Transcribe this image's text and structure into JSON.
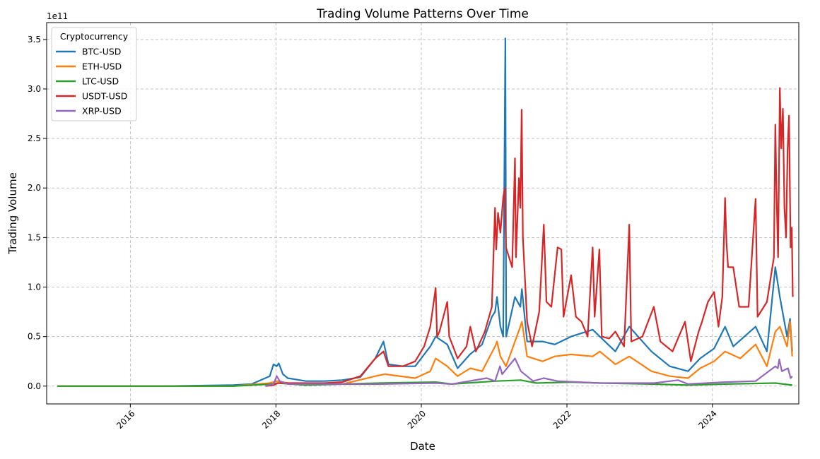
{
  "chart_data": {
    "type": "line",
    "title": "Trading Volume Patterns Over Time",
    "xlabel": "Date",
    "ylabel": "Trading Volume",
    "y_offset_label": "1e11",
    "xlim": [
      "2014-11-07",
      "2025-03-10"
    ],
    "ylim": [
      -1.8,
      3.67
    ],
    "y_unit_note": "values in units of 1e11",
    "x_ticks": [
      {
        "label": "2016",
        "date": "2016-01-01"
      },
      {
        "label": "2018",
        "date": "2018-01-01"
      },
      {
        "label": "2020",
        "date": "2020-01-01"
      },
      {
        "label": "2022",
        "date": "2022-01-01"
      },
      {
        "label": "2024",
        "date": "2024-01-01"
      }
    ],
    "y_ticks": [
      {
        "label": "0.0",
        "value": 0.0
      },
      {
        "label": "0.5",
        "value": 0.5
      },
      {
        "label": "1.0",
        "value": 1.0
      },
      {
        "label": "1.5",
        "value": 1.5
      },
      {
        "label": "2.0",
        "value": 2.0
      },
      {
        "label": "2.5",
        "value": 2.5
      },
      {
        "label": "3.0",
        "value": 3.0
      },
      {
        "label": "3.5",
        "value": 3.5
      }
    ],
    "grid": true,
    "legend": {
      "title": "Cryptocurrency",
      "placement": "top-left"
    },
    "series": [
      {
        "name": "BTC-USD",
        "color": "#1f77b4",
        "points": [
          [
            "2014-12-31",
            0.0
          ],
          [
            "2016-06-01",
            0.0
          ],
          [
            "2017-06-01",
            0.01
          ],
          [
            "2017-09-01",
            0.02
          ],
          [
            "2017-12-01",
            0.1
          ],
          [
            "2017-12-20",
            0.22
          ],
          [
            "2018-01-05",
            0.2
          ],
          [
            "2018-01-15",
            0.23
          ],
          [
            "2018-02-05",
            0.12
          ],
          [
            "2018-03-01",
            0.08
          ],
          [
            "2018-06-01",
            0.05
          ],
          [
            "2018-09-01",
            0.05
          ],
          [
            "2018-12-01",
            0.06
          ],
          [
            "2019-03-01",
            0.09
          ],
          [
            "2019-05-15",
            0.28
          ],
          [
            "2019-06-25",
            0.45
          ],
          [
            "2019-07-20",
            0.22
          ],
          [
            "2019-10-01",
            0.2
          ],
          [
            "2019-12-01",
            0.2
          ],
          [
            "2020-02-15",
            0.4
          ],
          [
            "2020-03-13",
            0.5
          ],
          [
            "2020-05-10",
            0.42
          ],
          [
            "2020-07-01",
            0.18
          ],
          [
            "2020-09-01",
            0.32
          ],
          [
            "2020-11-01",
            0.42
          ],
          [
            "2020-12-20",
            0.7
          ],
          [
            "2021-01-05",
            0.75
          ],
          [
            "2021-01-15",
            0.9
          ],
          [
            "2021-02-01",
            0.6
          ],
          [
            "2021-02-15",
            0.5
          ],
          [
            "2021-02-26",
            3.51
          ],
          [
            "2021-03-02",
            0.5
          ],
          [
            "2021-04-15",
            0.9
          ],
          [
            "2021-05-12",
            0.8
          ],
          [
            "2021-05-20",
            0.98
          ],
          [
            "2021-06-15",
            0.45
          ],
          [
            "2021-09-01",
            0.45
          ],
          [
            "2021-11-01",
            0.42
          ],
          [
            "2022-01-22",
            0.5
          ],
          [
            "2022-05-10",
            0.57
          ],
          [
            "2022-06-15",
            0.5
          ],
          [
            "2022-09-01",
            0.35
          ],
          [
            "2022-11-10",
            0.6
          ],
          [
            "2023-03-01",
            0.35
          ],
          [
            "2023-06-01",
            0.2
          ],
          [
            "2023-09-01",
            0.15
          ],
          [
            "2023-11-01",
            0.28
          ],
          [
            "2024-01-10",
            0.38
          ],
          [
            "2024-03-05",
            0.6
          ],
          [
            "2024-04-15",
            0.4
          ],
          [
            "2024-08-05",
            0.6
          ],
          [
            "2024-10-01",
            0.35
          ],
          [
            "2024-11-12",
            1.2
          ],
          [
            "2024-12-05",
            0.9
          ],
          [
            "2025-01-10",
            0.5
          ],
          [
            "2025-01-25",
            0.68
          ],
          [
            "2025-02-05",
            0.35
          ]
        ]
      },
      {
        "name": "ETH-USD",
        "color": "#ff7f0e",
        "points": [
          [
            "2014-12-31",
            0.0
          ],
          [
            "2017-06-01",
            0.0
          ],
          [
            "2017-12-01",
            0.03
          ],
          [
            "2018-01-10",
            0.05
          ],
          [
            "2018-03-01",
            0.03
          ],
          [
            "2018-06-01",
            0.02
          ],
          [
            "2018-12-01",
            0.02
          ],
          [
            "2019-05-15",
            0.1
          ],
          [
            "2019-07-01",
            0.12
          ],
          [
            "2019-12-01",
            0.08
          ],
          [
            "2020-02-15",
            0.15
          ],
          [
            "2020-03-13",
            0.28
          ],
          [
            "2020-05-10",
            0.2
          ],
          [
            "2020-07-01",
            0.1
          ],
          [
            "2020-09-03",
            0.18
          ],
          [
            "2020-11-01",
            0.15
          ],
          [
            "2021-01-05",
            0.4
          ],
          [
            "2021-01-15",
            0.45
          ],
          [
            "2021-02-01",
            0.3
          ],
          [
            "2021-03-01",
            0.2
          ],
          [
            "2021-05-12",
            0.6
          ],
          [
            "2021-05-20",
            0.65
          ],
          [
            "2021-06-15",
            0.3
          ],
          [
            "2021-09-01",
            0.25
          ],
          [
            "2021-11-01",
            0.3
          ],
          [
            "2022-01-22",
            0.32
          ],
          [
            "2022-05-10",
            0.3
          ],
          [
            "2022-06-15",
            0.35
          ],
          [
            "2022-09-01",
            0.22
          ],
          [
            "2022-11-10",
            0.3
          ],
          [
            "2023-03-01",
            0.15
          ],
          [
            "2023-06-01",
            0.1
          ],
          [
            "2023-09-01",
            0.08
          ],
          [
            "2023-11-01",
            0.18
          ],
          [
            "2024-01-10",
            0.25
          ],
          [
            "2024-03-05",
            0.35
          ],
          [
            "2024-05-20",
            0.28
          ],
          [
            "2024-08-05",
            0.42
          ],
          [
            "2024-10-01",
            0.2
          ],
          [
            "2024-11-12",
            0.55
          ],
          [
            "2024-12-05",
            0.6
          ],
          [
            "2025-01-10",
            0.4
          ],
          [
            "2025-01-25",
            0.65
          ],
          [
            "2025-02-05",
            0.3
          ]
        ]
      },
      {
        "name": "LTC-USD",
        "color": "#2ca02c",
        "points": [
          [
            "2014-12-31",
            0.0
          ],
          [
            "2017-06-01",
            0.0
          ],
          [
            "2017-12-15",
            0.02
          ],
          [
            "2018-01-10",
            0.03
          ],
          [
            "2018-06-01",
            0.01
          ],
          [
            "2019-06-01",
            0.03
          ],
          [
            "2020-03-13",
            0.04
          ],
          [
            "2020-06-01",
            0.02
          ],
          [
            "2021-01-10",
            0.05
          ],
          [
            "2021-05-15",
            0.06
          ],
          [
            "2021-08-01",
            0.03
          ],
          [
            "2022-01-22",
            0.04
          ],
          [
            "2022-06-15",
            0.03
          ],
          [
            "2023-03-01",
            0.02
          ],
          [
            "2023-09-01",
            0.01
          ],
          [
            "2024-03-05",
            0.02
          ],
          [
            "2024-11-12",
            0.03
          ],
          [
            "2025-02-05",
            0.01
          ]
        ]
      },
      {
        "name": "USDT-USD",
        "color": "#d62728",
        "points": [
          [
            "2017-11-09",
            0.0
          ],
          [
            "2017-12-20",
            0.01
          ],
          [
            "2018-01-10",
            0.03
          ],
          [
            "2018-03-01",
            0.03
          ],
          [
            "2018-06-01",
            0.03
          ],
          [
            "2018-09-01",
            0.03
          ],
          [
            "2018-12-01",
            0.04
          ],
          [
            "2019-03-01",
            0.1
          ],
          [
            "2019-05-15",
            0.28
          ],
          [
            "2019-06-25",
            0.35
          ],
          [
            "2019-07-20",
            0.2
          ],
          [
            "2019-10-01",
            0.2
          ],
          [
            "2019-12-01",
            0.25
          ],
          [
            "2020-01-15",
            0.4
          ],
          [
            "2020-02-15",
            0.6
          ],
          [
            "2020-03-13",
            0.99
          ],
          [
            "2020-03-20",
            0.5
          ],
          [
            "2020-04-01",
            0.55
          ],
          [
            "2020-05-10",
            0.85
          ],
          [
            "2020-05-20",
            0.5
          ],
          [
            "2020-07-01",
            0.28
          ],
          [
            "2020-08-15",
            0.4
          ],
          [
            "2020-09-03",
            0.6
          ],
          [
            "2020-10-01",
            0.35
          ],
          [
            "2020-11-15",
            0.55
          ],
          [
            "2020-12-20",
            0.8
          ],
          [
            "2021-01-05",
            1.8
          ],
          [
            "2021-01-11",
            1.38
          ],
          [
            "2021-01-20",
            1.75
          ],
          [
            "2021-02-01",
            1.55
          ],
          [
            "2021-02-15",
            1.9
          ],
          [
            "2021-02-23",
            2.0
          ],
          [
            "2021-03-01",
            1.4
          ],
          [
            "2021-04-01",
            1.2
          ],
          [
            "2021-04-15",
            2.3
          ],
          [
            "2021-04-20",
            1.3
          ],
          [
            "2021-05-05",
            2.1
          ],
          [
            "2021-05-12",
            1.8
          ],
          [
            "2021-05-19",
            2.79
          ],
          [
            "2021-05-25",
            1.5
          ],
          [
            "2021-06-15",
            0.65
          ],
          [
            "2021-07-10",
            0.4
          ],
          [
            "2021-08-15",
            0.75
          ],
          [
            "2021-09-07",
            1.63
          ],
          [
            "2021-09-20",
            0.85
          ],
          [
            "2021-10-15",
            0.8
          ],
          [
            "2021-11-15",
            1.4
          ],
          [
            "2021-12-04",
            1.38
          ],
          [
            "2021-12-15",
            0.7
          ],
          [
            "2022-01-22",
            1.12
          ],
          [
            "2022-02-15",
            0.7
          ],
          [
            "2022-03-15",
            0.65
          ],
          [
            "2022-04-15",
            0.5
          ],
          [
            "2022-05-10",
            1.4
          ],
          [
            "2022-05-20",
            0.7
          ],
          [
            "2022-06-13",
            1.38
          ],
          [
            "2022-06-25",
            0.5
          ],
          [
            "2022-08-01",
            0.48
          ],
          [
            "2022-09-01",
            0.55
          ],
          [
            "2022-10-15",
            0.4
          ],
          [
            "2022-11-10",
            1.63
          ],
          [
            "2022-11-20",
            0.45
          ],
          [
            "2023-01-15",
            0.5
          ],
          [
            "2023-03-13",
            0.8
          ],
          [
            "2023-04-15",
            0.45
          ],
          [
            "2023-06-15",
            0.35
          ],
          [
            "2023-08-17",
            0.65
          ],
          [
            "2023-09-15",
            0.25
          ],
          [
            "2023-10-24",
            0.55
          ],
          [
            "2023-11-10",
            0.65
          ],
          [
            "2023-12-10",
            0.85
          ],
          [
            "2024-01-10",
            0.95
          ],
          [
            "2024-02-01",
            0.6
          ],
          [
            "2024-02-20",
            0.9
          ],
          [
            "2024-03-05",
            1.9
          ],
          [
            "2024-03-12",
            1.45
          ],
          [
            "2024-03-20",
            1.2
          ],
          [
            "2024-04-15",
            1.2
          ],
          [
            "2024-05-15",
            0.8
          ],
          [
            "2024-07-01",
            0.8
          ],
          [
            "2024-08-05",
            1.89
          ],
          [
            "2024-08-15",
            0.7
          ],
          [
            "2024-10-01",
            0.85
          ],
          [
            "2024-11-05",
            1.3
          ],
          [
            "2024-11-12",
            2.64
          ],
          [
            "2024-11-18",
            2.0
          ],
          [
            "2024-11-26",
            1.3
          ],
          [
            "2024-12-05",
            3.01
          ],
          [
            "2024-12-12",
            2.4
          ],
          [
            "2024-12-20",
            2.8
          ],
          [
            "2024-12-28",
            1.8
          ],
          [
            "2025-01-05",
            1.5
          ],
          [
            "2025-01-13",
            2.4
          ],
          [
            "2025-01-20",
            2.73
          ],
          [
            "2025-01-28",
            1.4
          ],
          [
            "2025-02-03",
            1.6
          ],
          [
            "2025-02-08",
            0.9
          ]
        ]
      },
      {
        "name": "XRP-USD",
        "color": "#9467bd",
        "points": [
          [
            "2017-11-09",
            0.0
          ],
          [
            "2017-12-20",
            0.02
          ],
          [
            "2018-01-05",
            0.1
          ],
          [
            "2018-01-20",
            0.05
          ],
          [
            "2018-03-01",
            0.02
          ],
          [
            "2018-09-01",
            0.02
          ],
          [
            "2019-06-01",
            0.02
          ],
          [
            "2020-03-13",
            0.03
          ],
          [
            "2020-06-01",
            0.02
          ],
          [
            "2020-11-24",
            0.08
          ],
          [
            "2021-01-05",
            0.05
          ],
          [
            "2021-01-30",
            0.2
          ],
          [
            "2021-02-10",
            0.12
          ],
          [
            "2021-04-15",
            0.28
          ],
          [
            "2021-05-15",
            0.15
          ],
          [
            "2021-07-15",
            0.05
          ],
          [
            "2021-09-07",
            0.08
          ],
          [
            "2021-11-15",
            0.05
          ],
          [
            "2022-06-15",
            0.03
          ],
          [
            "2023-03-15",
            0.03
          ],
          [
            "2023-07-13",
            0.06
          ],
          [
            "2023-09-01",
            0.02
          ],
          [
            "2024-03-05",
            0.04
          ],
          [
            "2024-08-05",
            0.05
          ],
          [
            "2024-11-12",
            0.2
          ],
          [
            "2024-11-25",
            0.18
          ],
          [
            "2024-12-02",
            0.27
          ],
          [
            "2024-12-15",
            0.15
          ],
          [
            "2025-01-15",
            0.18
          ],
          [
            "2025-01-28",
            0.08
          ],
          [
            "2025-02-05",
            0.1
          ]
        ]
      }
    ]
  }
}
